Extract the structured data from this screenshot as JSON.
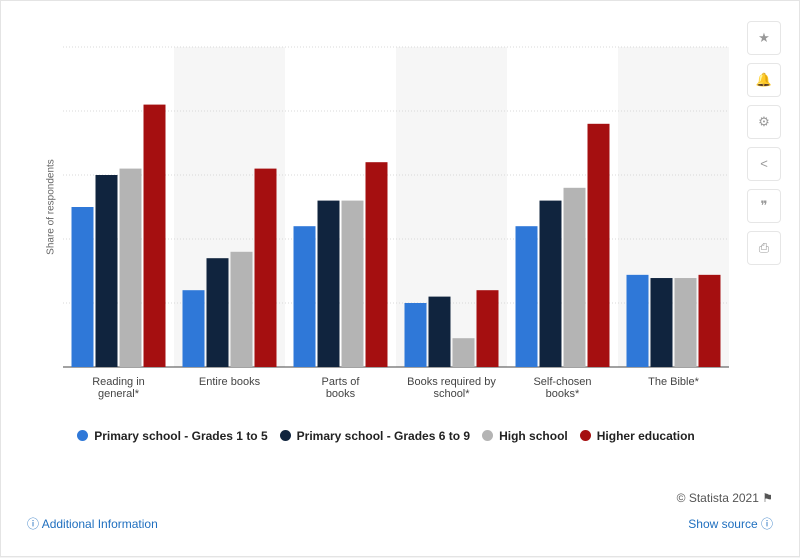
{
  "chart_data": {
    "type": "bar",
    "y_label": "Share of respondents",
    "categories": [
      "Reading in general*",
      "Entire books",
      "Parts of books",
      "Books required by school*",
      "Self-chosen books*",
      "The Bible*"
    ],
    "series": [
      {
        "name": "Primary school - Grades 1 to 5",
        "color": "#2f78d8",
        "values": [
          25,
          12,
          22,
          10,
          22,
          14.4
        ]
      },
      {
        "name": "Primary school - Grades 6 to 9",
        "color": "#10243e",
        "values": [
          30,
          17,
          26,
          11,
          26,
          13.9
        ]
      },
      {
        "name": "High school",
        "color": "#b4b4b4",
        "values": [
          31,
          18,
          26,
          4.5,
          28,
          13.9
        ]
      },
      {
        "name": "Higher education",
        "color": "#a50f10",
        "values": [
          41,
          31,
          32,
          12,
          38,
          14.4
        ]
      }
    ],
    "ylim": [
      0,
      50
    ],
    "yticks": [
      0,
      10,
      20,
      30,
      40,
      50
    ],
    "grid": true
  },
  "footer": {
    "copyright": "© Statista 2021",
    "additional_information": "Additional Information",
    "show_source": "Show source"
  }
}
